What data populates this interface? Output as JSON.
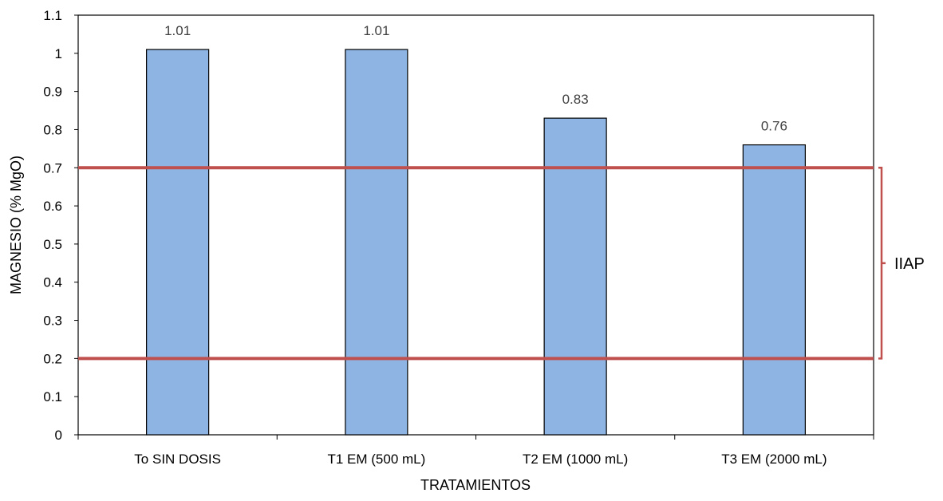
{
  "chart_data": {
    "type": "bar",
    "title": "",
    "xlabel": "TRATAMIENTOS",
    "ylabel": "MAGNESIO (% MgO)",
    "ylim": [
      0,
      1.1
    ],
    "yticks": [
      0,
      0.1,
      0.2,
      0.3,
      0.4,
      0.5,
      0.6,
      0.7,
      0.8,
      0.9,
      1,
      1.1
    ],
    "ytick_labels": [
      "0",
      "0.1",
      "0.2",
      "0.3",
      "0.4",
      "0.5",
      "0.6",
      "0.7",
      "0.8",
      "0.9",
      "1",
      "1.1"
    ],
    "categories": [
      "To SIN DOSIS",
      "T1 EM (500 mL)",
      "T2 EM (1000 mL)",
      "T3 EM (2000 mL)"
    ],
    "values": [
      1.01,
      1.01,
      0.83,
      0.76
    ],
    "data_labels": [
      "1.01",
      "1.01",
      "0.83",
      "0.76"
    ],
    "grid": false,
    "legend": "none",
    "reference_band": {
      "label": "IIAP",
      "low": 0.2,
      "high": 0.7
    },
    "colors": {
      "bar_fill": "#8EB4E3",
      "bar_stroke": "#000000",
      "reference_line": "#C0504D",
      "data_label": "#404040"
    }
  }
}
